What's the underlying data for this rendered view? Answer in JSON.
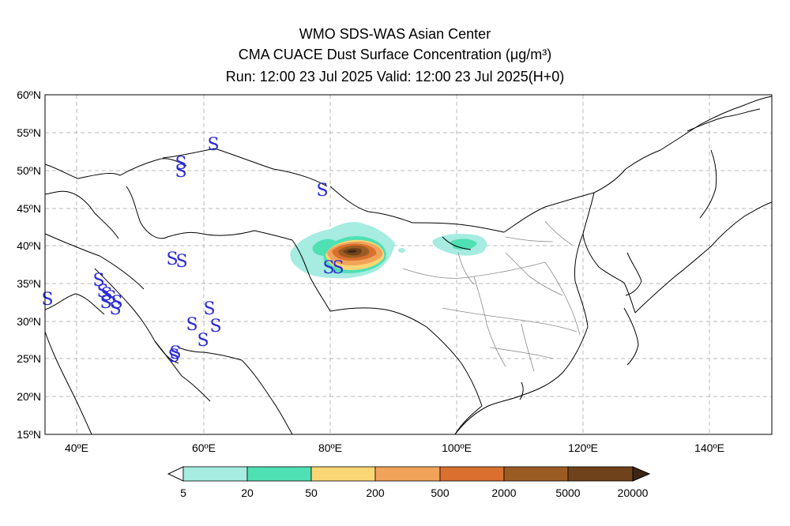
{
  "header": {
    "line1": "WMO SDS-WAS Asian Center",
    "line2": "CMA CUACE Dust Surface Concentration (μg/m³)",
    "line3": "Run: 12:00 23 Jul 2025    Valid: 12:00 23 Jul 2025(H+0)"
  },
  "map": {
    "lon_range": [
      35,
      150
    ],
    "lat_range": [
      15,
      60
    ],
    "lat_ticks": [
      "60ºN",
      "55ºN",
      "50ºN",
      "45ºN",
      "40ºN",
      "35ºN",
      "30ºN",
      "25ºN",
      "20ºN",
      "15ºN"
    ],
    "lon_ticks": [
      "40ºE",
      "60ºE",
      "80ºE",
      "100ºE",
      "120ºE",
      "140ºE"
    ],
    "grid": true,
    "site_marker": "S"
  },
  "colorbar": {
    "labels": [
      "5",
      "20",
      "50",
      "200",
      "500",
      "2000",
      "5000",
      "20000"
    ],
    "colors": [
      "#a6ece0",
      "#4fe0b4",
      "#fad774",
      "#f1a35a",
      "#d9702f",
      "#9b5c23",
      "#6e421b",
      "#3c2514"
    ]
  }
}
